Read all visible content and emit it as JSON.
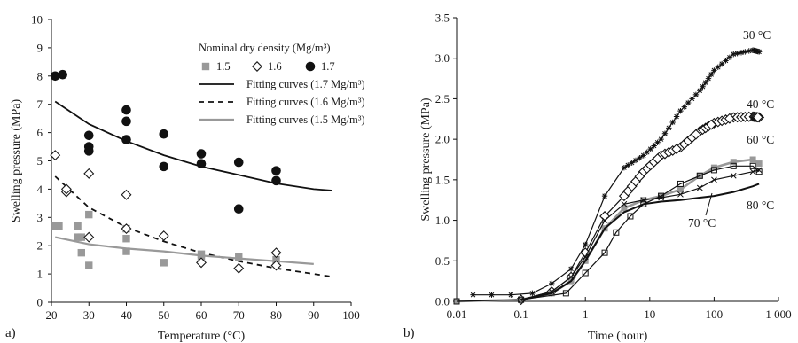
{
  "chart_data": [
    {
      "panel_label": "a)",
      "type": "scatter",
      "xlabel": "Temperature (°C)",
      "ylabel": "Swelling pressure (MPa)",
      "xlim": [
        20,
        100
      ],
      "ylim": [
        0,
        10
      ],
      "x_ticks": [
        "20",
        "30",
        "40",
        "50",
        "60",
        "70",
        "80",
        "90",
        "100"
      ],
      "y_ticks": [
        "0",
        "1",
        "2",
        "3",
        "4",
        "5",
        "6",
        "7",
        "8",
        "9",
        "10"
      ],
      "grid": false,
      "legend_position": "top-right",
      "legend_title": "Nominal dry density (Mg/m³)",
      "series": [
        {
          "name": "1.5",
          "marker": "square",
          "color": "#999999",
          "points": [
            [
              21,
              2.7
            ],
            [
              22,
              2.7
            ],
            [
              27,
              2.3
            ],
            [
              27,
              2.7
            ],
            [
              28,
              1.75
            ],
            [
              28,
              2.3
            ],
            [
              30,
              3.1
            ],
            [
              30,
              1.3
            ],
            [
              40,
              2.25
            ],
            [
              40,
              1.8
            ],
            [
              40,
              2.6
            ],
            [
              50,
              1.4
            ],
            [
              60,
              1.7
            ],
            [
              60,
              1.5
            ],
            [
              70,
              1.6
            ],
            [
              80,
              1.5
            ]
          ]
        },
        {
          "name": "1.6",
          "marker": "diamond-open",
          "color": "#1a1a1a",
          "points": [
            [
              21,
              5.2
            ],
            [
              24,
              3.9
            ],
            [
              24,
              4.0
            ],
            [
              30,
              4.55
            ],
            [
              30,
              2.3
            ],
            [
              40,
              3.8
            ],
            [
              40,
              2.6
            ],
            [
              50,
              2.35
            ],
            [
              60,
              1.4
            ],
            [
              70,
              1.2
            ],
            [
              80,
              1.75
            ],
            [
              80,
              1.3
            ]
          ]
        },
        {
          "name": "1.7",
          "marker": "circle-filled",
          "color": "#111111",
          "points": [
            [
              21,
              8.0
            ],
            [
              23,
              8.05
            ],
            [
              30,
              5.9
            ],
            [
              30,
              5.5
            ],
            [
              30,
              5.35
            ],
            [
              40,
              6.8
            ],
            [
              40,
              6.4
            ],
            [
              40,
              5.75
            ],
            [
              50,
              5.95
            ],
            [
              50,
              4.8
            ],
            [
              60,
              5.25
            ],
            [
              60,
              4.9
            ],
            [
              70,
              4.95
            ],
            [
              70,
              3.3
            ],
            [
              80,
              4.65
            ],
            [
              80,
              4.3
            ]
          ]
        }
      ],
      "curves": [
        {
          "name": "Fitting curves (1.7 Mg/m³)",
          "style": "solid",
          "color": "#111111",
          "x": [
            21,
            30,
            40,
            50,
            60,
            70,
            80,
            90,
            95
          ],
          "y": [
            7.1,
            6.3,
            5.7,
            5.2,
            4.8,
            4.5,
            4.2,
            4.0,
            3.95
          ]
        },
        {
          "name": "Fitting curves (1.6 Mg/m³)",
          "style": "dashed",
          "color": "#111111",
          "x": [
            21,
            30,
            40,
            50,
            60,
            70,
            80,
            90,
            95
          ],
          "y": [
            4.45,
            3.35,
            2.65,
            2.15,
            1.75,
            1.45,
            1.2,
            1.0,
            0.9
          ]
        },
        {
          "name": "Fitting curves (1.5 Mg/m³)",
          "style": "solid",
          "color": "#999999",
          "x": [
            21,
            30,
            40,
            50,
            60,
            70,
            80,
            90
          ],
          "y": [
            2.3,
            2.05,
            1.9,
            1.8,
            1.65,
            1.55,
            1.45,
            1.35
          ]
        }
      ]
    },
    {
      "panel_label": "b)",
      "type": "line",
      "xlabel": "Time (hour)",
      "ylabel": "Swelling pressure (MPa)",
      "xscale": "log",
      "xlim": [
        0.01,
        1000
      ],
      "ylim": [
        0,
        3.5
      ],
      "x_ticks": [
        "0.01",
        "0.1",
        "1",
        "10",
        "100",
        "1 000"
      ],
      "y_ticks": [
        "0.0",
        "0.5",
        "1.0",
        "1.5",
        "2.0",
        "2.5",
        "3.0",
        "3.5"
      ],
      "grid": false,
      "series": [
        {
          "name": "30 °C",
          "marker": "star",
          "color": "#111111",
          "x": [
            0.018,
            0.035,
            0.07,
            0.15,
            0.3,
            0.6,
            1,
            2,
            4,
            8,
            15,
            30,
            60,
            100,
            200,
            400,
            500
          ],
          "y": [
            0.08,
            0.08,
            0.08,
            0.1,
            0.22,
            0.4,
            0.7,
            1.3,
            1.65,
            1.8,
            2.0,
            2.35,
            2.6,
            2.85,
            3.05,
            3.1,
            3.08
          ]
        },
        {
          "name": "40 °C",
          "marker": "diamond-open",
          "color": "#111111",
          "x": [
            0.1,
            0.3,
            0.6,
            1,
            2,
            4,
            8,
            15,
            30,
            60,
            100,
            200,
            400,
            500
          ],
          "y": [
            0.02,
            0.12,
            0.3,
            0.6,
            1.05,
            1.3,
            1.6,
            1.8,
            1.9,
            2.1,
            2.2,
            2.27,
            2.28,
            2.27
          ]
        },
        {
          "name": "60 °C",
          "marker": "square-gray",
          "color": "#999999",
          "x": [
            0.01,
            0.1,
            0.3,
            0.6,
            1,
            2,
            4,
            8,
            15,
            30,
            60,
            100,
            200,
            400,
            500
          ],
          "y": [
            0,
            0.02,
            0.1,
            0.25,
            0.5,
            0.9,
            1.15,
            1.25,
            1.3,
            1.38,
            1.55,
            1.65,
            1.72,
            1.75,
            1.7
          ]
        },
        {
          "name": "70 °C",
          "marker": "x",
          "color": "#111111",
          "x": [
            0.1,
            0.3,
            0.6,
            1,
            2,
            4,
            8,
            15,
            30,
            60,
            100,
            200,
            400,
            500
          ],
          "y": [
            0.02,
            0.12,
            0.3,
            0.55,
            1.0,
            1.2,
            1.25,
            1.28,
            1.32,
            1.4,
            1.5,
            1.55,
            1.6,
            1.62
          ]
        },
        {
          "name": "80 °C",
          "marker": "line",
          "color": "#111111",
          "x": [
            0.1,
            0.3,
            0.6,
            1,
            2,
            4,
            8,
            15,
            30,
            60,
            100,
            200,
            400,
            500
          ],
          "y": [
            0.02,
            0.1,
            0.25,
            0.5,
            0.9,
            1.1,
            1.2,
            1.23,
            1.25,
            1.28,
            1.3,
            1.35,
            1.42,
            1.45
          ]
        },
        {
          "name": "",
          "marker": "square-open",
          "color": "#111111",
          "x": [
            0.01,
            0.1,
            0.5,
            1,
            2,
            3,
            5,
            8,
            15,
            30,
            60,
            100,
            200,
            400,
            500
          ],
          "y": [
            0,
            0.02,
            0.1,
            0.35,
            0.6,
            0.85,
            1.05,
            1.2,
            1.3,
            1.45,
            1.55,
            1.62,
            1.67,
            1.67,
            1.6
          ]
        }
      ],
      "annotations": [
        "30 °C",
        "40 °C",
        "60 °C",
        "70 °C",
        "80 °C"
      ]
    }
  ]
}
